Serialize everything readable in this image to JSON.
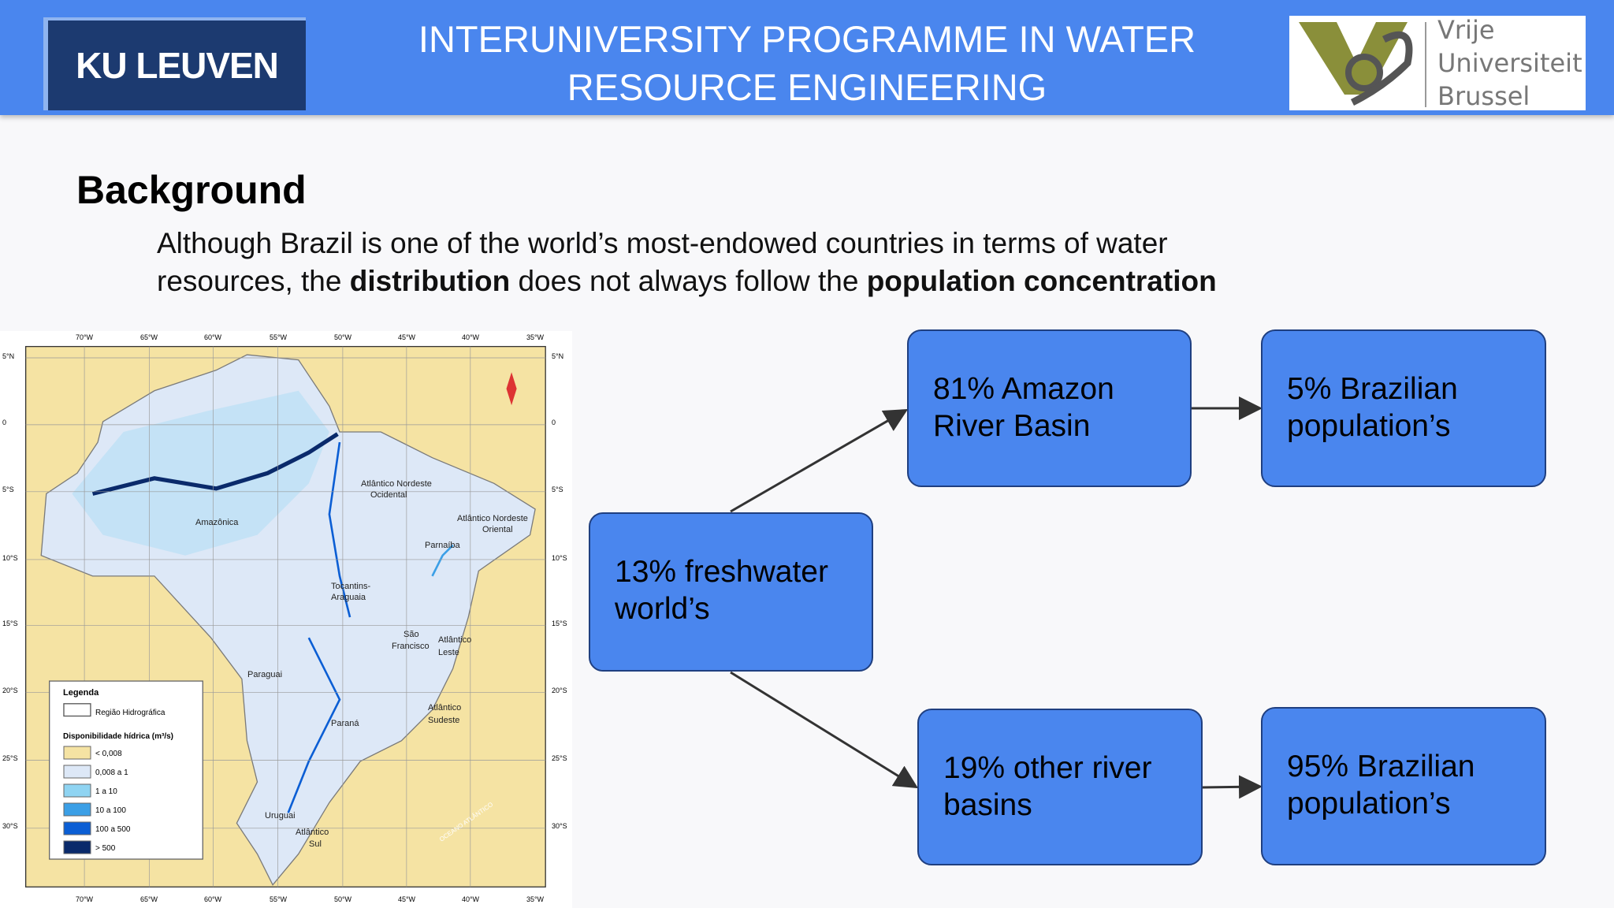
{
  "header": {
    "title_lines": [
      "INTERUNIVERSITY PROGRAMME IN WATER",
      "RESOURCE ENGINEERING"
    ],
    "left_logo": "KU LEUVEN",
    "right_logo": [
      "Vrije",
      "Universiteit",
      "Brussel"
    ]
  },
  "section": {
    "heading": "Background",
    "body": [
      "Although Brazil is one of the world’s most-endowed countries in terms of water",
      "resources, the ",
      "distribution",
      " does not always follow the ",
      "population concentration"
    ]
  },
  "map": {
    "lon_labels": [
      "70°W",
      "65°W",
      "60°W",
      "55°W",
      "50°W",
      "45°W",
      "40°W",
      "35°W"
    ],
    "lat_labels": [
      "5°N",
      "0",
      "5°S",
      "10°S",
      "15°S",
      "20°S",
      "25°S",
      "30°S"
    ],
    "regions": [
      "Amazônica",
      "Atlântico Nordeste",
      "Ocidental",
      "Atlântico Nordeste",
      "Oriental",
      "Parnaíba",
      "Tocantins-",
      "Araguaia",
      "São",
      "Francisco",
      "Atlântico",
      "Leste",
      "Paraguai",
      "Atlântico",
      "Sudeste",
      "Paraná",
      "Uruguai",
      "Atlântico",
      "Sul",
      "OCEANO ATLÂNTICO"
    ],
    "legend": {
      "title": "Legenda",
      "region_item": "Região Hidrográfica",
      "subtitle": "Disponibilidade hídrica (m³/s)",
      "items": [
        {
          "label": "< 0,008",
          "color": "#f5e3a3"
        },
        {
          "label": "0,008 a 1",
          "color": "#dde8f7"
        },
        {
          "label": "1 a 10",
          "color": "#8fd4f2"
        },
        {
          "label": "10 a 100",
          "color": "#3b9fe6"
        },
        {
          "label": "100 a 500",
          "color": "#0b5ed4"
        },
        {
          "label": "> 500",
          "color": "#0a2a6b"
        }
      ]
    }
  },
  "diagram": {
    "nodes": [
      {
        "lines": [
          "13% freshwater",
          "world’s"
        ]
      },
      {
        "lines": [
          "81% Amazon",
          "River Basin"
        ]
      },
      {
        "lines": [
          "5% Brazilian",
          "population’s"
        ]
      },
      {
        "lines": [
          "19% other river",
          "basins"
        ]
      },
      {
        "lines": [
          "95% Brazilian",
          "population’s"
        ]
      }
    ]
  }
}
